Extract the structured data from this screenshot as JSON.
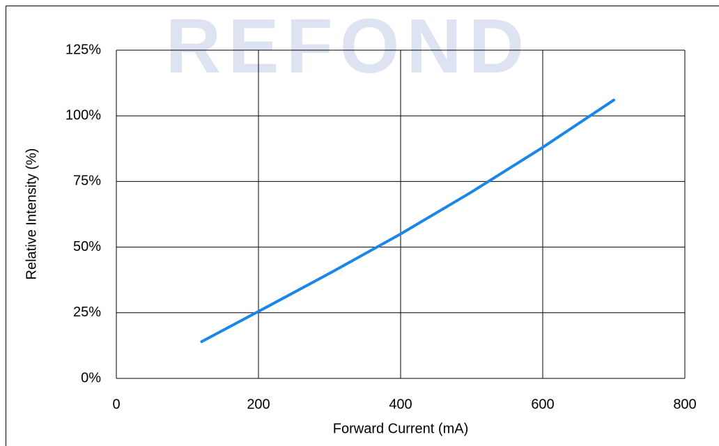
{
  "chart_data": {
    "type": "line",
    "watermark": "REFOND",
    "xlabel": "Forward Current (mA)",
    "ylabel": "Relative Intensity (%)",
    "x": [
      120,
      200,
      300,
      400,
      500,
      600,
      700
    ],
    "series": [
      {
        "name": "Relative Intensity",
        "color": "#1a86e8",
        "values": [
          14,
          25.5,
          40,
          55,
          71,
          88,
          106
        ]
      }
    ],
    "xlim": [
      0,
      800
    ],
    "xticks": [
      0,
      200,
      400,
      600,
      800
    ],
    "ylim": [
      0,
      125
    ],
    "yticks": [
      {
        "value": 0,
        "label": "0%"
      },
      {
        "value": 25,
        "label": "25%"
      },
      {
        "value": 50,
        "label": "50%"
      },
      {
        "value": 75,
        "label": "75%"
      },
      {
        "value": 100,
        "label": "100%"
      },
      {
        "value": 125,
        "label": "125%"
      }
    ],
    "grid": true
  }
}
